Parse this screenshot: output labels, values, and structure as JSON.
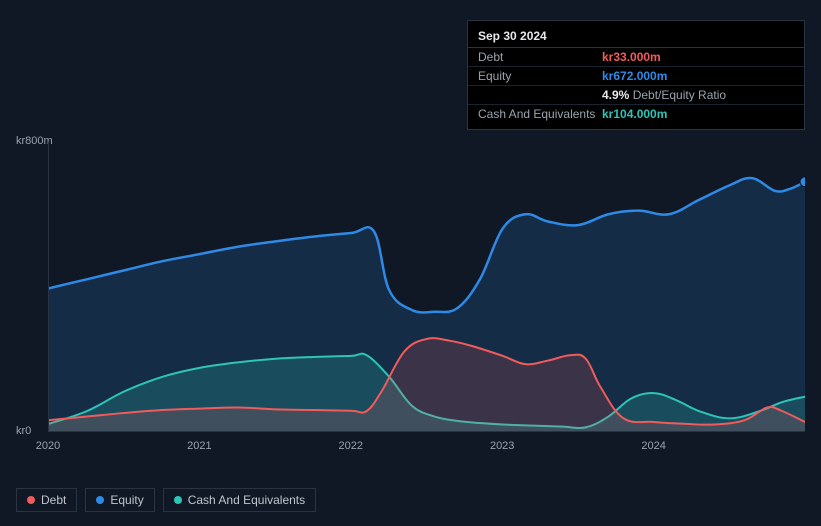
{
  "tooltip": {
    "title": "Sep 30 2024",
    "rows": [
      {
        "label": "Debt",
        "value": "kr33.000m",
        "color": "#f15b5b"
      },
      {
        "label": "Equity",
        "value": "kr672.000m",
        "color": "#2e8ae6"
      },
      {
        "label": "",
        "value_strong": "4.9%",
        "value_suffix": "Debt/Equity Ratio",
        "color": "#e6e8eb"
      },
      {
        "label": "Cash And Equivalents",
        "value": "kr104.000m",
        "color": "#2ec4b6"
      }
    ]
  },
  "chart": {
    "type": "area",
    "background_color": "#0f1824",
    "grid_color": "#2a3340",
    "ylim": [
      0,
      800
    ],
    "y_ticks": [
      {
        "v": 0,
        "label": "kr0"
      },
      {
        "v": 800,
        "label": "kr800m"
      }
    ],
    "x_domain": [
      2020,
      2025
    ],
    "x_ticks": [
      {
        "v": 2020,
        "label": "2020"
      },
      {
        "v": 2021,
        "label": "2021"
      },
      {
        "v": 2022,
        "label": "2022"
      },
      {
        "v": 2023,
        "label": "2023"
      },
      {
        "v": 2024,
        "label": "2024"
      }
    ],
    "series": [
      {
        "name": "Equity",
        "stroke": "#2e8ae6",
        "fill": "#2e8ae6",
        "fill_opacity": 0.18,
        "stroke_width": 2.5,
        "points": [
          [
            2020.0,
            395
          ],
          [
            2020.25,
            420
          ],
          [
            2020.5,
            445
          ],
          [
            2020.75,
            470
          ],
          [
            2021.0,
            490
          ],
          [
            2021.25,
            510
          ],
          [
            2021.5,
            525
          ],
          [
            2021.75,
            538
          ],
          [
            2022.0,
            548
          ],
          [
            2022.15,
            552
          ],
          [
            2022.25,
            390
          ],
          [
            2022.4,
            335
          ],
          [
            2022.55,
            330
          ],
          [
            2022.7,
            340
          ],
          [
            2022.85,
            420
          ],
          [
            2023.0,
            560
          ],
          [
            2023.15,
            600
          ],
          [
            2023.3,
            580
          ],
          [
            2023.5,
            570
          ],
          [
            2023.7,
            600
          ],
          [
            2023.9,
            610
          ],
          [
            2024.1,
            600
          ],
          [
            2024.3,
            640
          ],
          [
            2024.5,
            680
          ],
          [
            2024.65,
            700
          ],
          [
            2024.8,
            665
          ],
          [
            2024.9,
            670
          ],
          [
            2025.0,
            690
          ]
        ]
      },
      {
        "name": "Cash And Equivalents",
        "stroke": "#2ec4b6",
        "fill": "#2ec4b6",
        "fill_opacity": 0.22,
        "stroke_width": 2,
        "points": [
          [
            2020.0,
            20
          ],
          [
            2020.25,
            55
          ],
          [
            2020.5,
            110
          ],
          [
            2020.75,
            150
          ],
          [
            2021.0,
            175
          ],
          [
            2021.25,
            190
          ],
          [
            2021.5,
            200
          ],
          [
            2021.75,
            205
          ],
          [
            2022.0,
            208
          ],
          [
            2022.1,
            210
          ],
          [
            2022.25,
            150
          ],
          [
            2022.4,
            70
          ],
          [
            2022.55,
            40
          ],
          [
            2022.7,
            28
          ],
          [
            2022.85,
            22
          ],
          [
            2023.0,
            18
          ],
          [
            2023.2,
            15
          ],
          [
            2023.4,
            12
          ],
          [
            2023.55,
            10
          ],
          [
            2023.7,
            40
          ],
          [
            2023.85,
            90
          ],
          [
            2024.0,
            105
          ],
          [
            2024.15,
            85
          ],
          [
            2024.3,
            55
          ],
          [
            2024.5,
            35
          ],
          [
            2024.7,
            55
          ],
          [
            2024.85,
            80
          ],
          [
            2025.0,
            95
          ]
        ]
      },
      {
        "name": "Debt",
        "stroke": "#f15b5b",
        "fill": "#f15b5b",
        "fill_opacity": 0.18,
        "stroke_width": 2,
        "points": [
          [
            2020.0,
            30
          ],
          [
            2020.25,
            40
          ],
          [
            2020.5,
            50
          ],
          [
            2020.75,
            58
          ],
          [
            2021.0,
            62
          ],
          [
            2021.25,
            65
          ],
          [
            2021.5,
            60
          ],
          [
            2021.75,
            58
          ],
          [
            2022.0,
            56
          ],
          [
            2022.1,
            55
          ],
          [
            2022.2,
            110
          ],
          [
            2022.35,
            220
          ],
          [
            2022.5,
            255
          ],
          [
            2022.65,
            250
          ],
          [
            2022.8,
            235
          ],
          [
            2023.0,
            208
          ],
          [
            2023.15,
            185
          ],
          [
            2023.3,
            195
          ],
          [
            2023.45,
            210
          ],
          [
            2023.55,
            200
          ],
          [
            2023.65,
            120
          ],
          [
            2023.8,
            35
          ],
          [
            2024.0,
            25
          ],
          [
            2024.2,
            20
          ],
          [
            2024.4,
            18
          ],
          [
            2024.6,
            30
          ],
          [
            2024.75,
            65
          ],
          [
            2024.85,
            55
          ],
          [
            2025.0,
            25
          ]
        ]
      }
    ],
    "end_marker": {
      "color": "#2e8ae6",
      "radius": 5
    }
  },
  "legend": {
    "items": [
      {
        "label": "Debt",
        "color": "#f15b5b"
      },
      {
        "label": "Equity",
        "color": "#2e8ae6"
      },
      {
        "label": "Cash And Equivalents",
        "color": "#2ec4b6"
      }
    ]
  }
}
